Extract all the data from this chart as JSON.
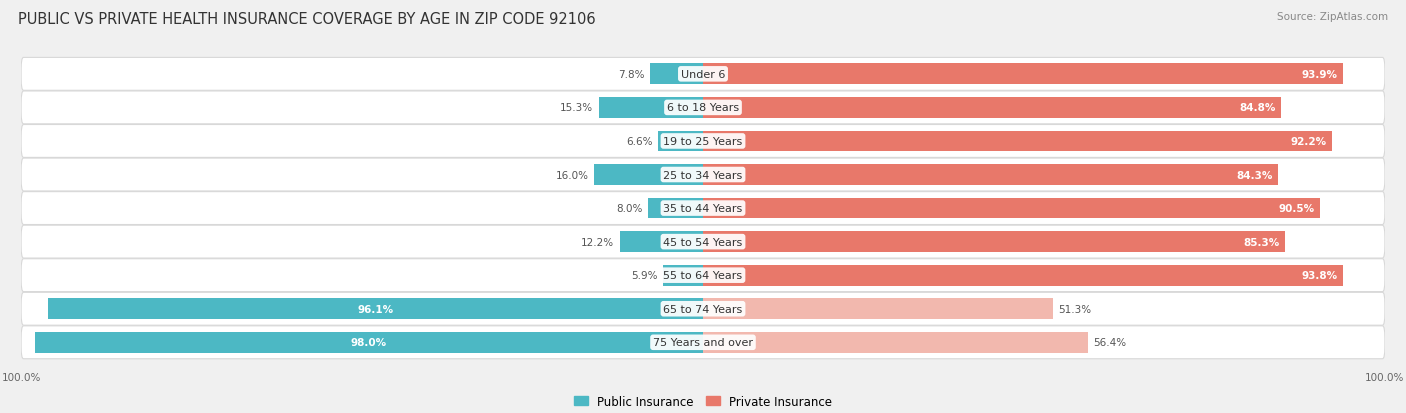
{
  "title": "PUBLIC VS PRIVATE HEALTH INSURANCE COVERAGE BY AGE IN ZIP CODE 92106",
  "source": "Source: ZipAtlas.com",
  "categories": [
    "Under 6",
    "6 to 18 Years",
    "19 to 25 Years",
    "25 to 34 Years",
    "35 to 44 Years",
    "45 to 54 Years",
    "55 to 64 Years",
    "65 to 74 Years",
    "75 Years and over"
  ],
  "public_values": [
    7.8,
    15.3,
    6.6,
    16.0,
    8.0,
    12.2,
    5.9,
    96.1,
    98.0
  ],
  "private_values": [
    93.9,
    84.8,
    92.2,
    84.3,
    90.5,
    85.3,
    93.8,
    51.3,
    56.4
  ],
  "public_color": "#4cb8c4",
  "private_color_strong": "#e8786a",
  "private_color_light": "#f2b8ae",
  "bg_color": "#f0f0f0",
  "row_bg_color": "#f7f7f7",
  "row_border_color": "#d8d8d8",
  "title_fontsize": 10.5,
  "source_fontsize": 7.5,
  "label_fontsize": 8,
  "value_fontsize": 7.5,
  "legend_fontsize": 8.5,
  "axis_label_fontsize": 7.5
}
